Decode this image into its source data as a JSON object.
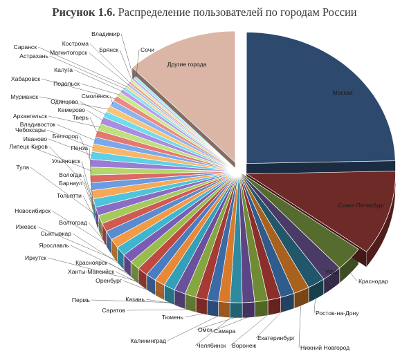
{
  "title": {
    "prefix": "Рисунок 1.6.",
    "text": "Распределение пользователей по городам России"
  },
  "chart_data": {
    "type": "pie",
    "style": "3d-exploded",
    "title": "Распределение пользователей по городам России",
    "slices": [
      {
        "label": "Москва",
        "value": 26.0,
        "color": "#2d4a6e"
      },
      {
        "label": "Санкт-Петербург",
        "value": 11.0,
        "color": "#6e2a27"
      },
      {
        "label": "Краснодар",
        "value": 3.2,
        "color": "#566b2e"
      },
      {
        "label": "Уфа",
        "value": 2.3,
        "color": "#4a3a66"
      },
      {
        "label": "Ростов-на-Дону",
        "value": 2.0,
        "color": "#22566a"
      },
      {
        "label": "Нижний Новгород",
        "value": 1.8,
        "color": "#a8621e"
      },
      {
        "label": "Екатеринбург",
        "value": 1.6,
        "color": "#2f5c8c"
      },
      {
        "label": "Воронеж",
        "value": 1.5,
        "color": "#8c2f2b"
      },
      {
        "label": "Самара",
        "value": 1.5,
        "color": "#6f8c35"
      },
      {
        "label": "Омск",
        "value": 1.4,
        "color": "#5c4585"
      },
      {
        "label": "Челябинск",
        "value": 1.4,
        "color": "#2d8aa0"
      },
      {
        "label": "Калининград",
        "value": 1.3,
        "color": "#d97a2b"
      },
      {
        "label": "Тюмень",
        "value": 1.3,
        "color": "#3c6aa6"
      },
      {
        "label": "Саратов",
        "value": 1.3,
        "color": "#a63a34"
      },
      {
        "label": "Казань",
        "value": 1.3,
        "color": "#85a641"
      },
      {
        "label": "Пермь",
        "value": 1.3,
        "color": "#6b509c"
      },
      {
        "label": "Оренбург",
        "value": 1.3,
        "color": "#34a0b8"
      },
      {
        "label": "Ханты-Мансийск",
        "value": 1.2,
        "color": "#e8893a"
      },
      {
        "label": "Красноярск",
        "value": 1.2,
        "color": "#4a7cc0"
      },
      {
        "label": "Иркутск",
        "value": 1.2,
        "color": "#c04840"
      },
      {
        "label": "Ярославль",
        "value": 1.2,
        "color": "#98bd4c"
      },
      {
        "label": "Сыктывкар",
        "value": 1.2,
        "color": "#7a5cb4"
      },
      {
        "label": "Ижевск",
        "value": 1.2,
        "color": "#3eb6cf"
      },
      {
        "label": "Волгоград",
        "value": 1.2,
        "color": "#f39a45"
      },
      {
        "label": "Новосибирск",
        "value": 1.2,
        "color": "#5a8bd0"
      },
      {
        "label": "Тольятти",
        "value": 1.1,
        "color": "#cf5a52"
      },
      {
        "label": "Барнаул",
        "value": 1.1,
        "color": "#a6c95c"
      },
      {
        "label": "Вологда",
        "value": 1.1,
        "color": "#8a6cc4"
      },
      {
        "label": "Тула",
        "value": 1.1,
        "color": "#4ec4dc"
      },
      {
        "label": "Ульяновск",
        "value": 1.1,
        "color": "#f5a957"
      },
      {
        "label": "Пенза",
        "value": 1.0,
        "color": "#6b9be0"
      },
      {
        "label": "Киров",
        "value": 1.0,
        "color": "#da6a62"
      },
      {
        "label": "Липецк",
        "value": 1.0,
        "color": "#b4d66c"
      },
      {
        "label": "Белгород",
        "value": 1.0,
        "color": "#9a7cd4"
      },
      {
        "label": "Иваново",
        "value": 1.0,
        "color": "#5ed0e6"
      },
      {
        "label": "Чебоксары",
        "value": 1.0,
        "color": "#f8b768"
      },
      {
        "label": "Владивосток",
        "value": 0.9,
        "color": "#7aa8ea"
      },
      {
        "label": "Тверь",
        "value": 0.9,
        "color": "#e27a72"
      },
      {
        "label": "Архангельск",
        "value": 0.9,
        "color": "#c0e07c"
      },
      {
        "label": "Кемерово",
        "value": 0.9,
        "color": "#aa8ce0"
      },
      {
        "label": "Одинцово",
        "value": 0.8,
        "color": "#70dcee"
      },
      {
        "label": "Мурманск",
        "value": 0.8,
        "color": "#fac478"
      },
      {
        "label": "Смоленск",
        "value": 0.8,
        "color": "#8ab4f0"
      },
      {
        "label": "Хабаровск",
        "value": 0.7,
        "color": "#ea8a82"
      },
      {
        "label": "Подольск",
        "value": 0.6,
        "color": "#cce88c"
      },
      {
        "label": "Калуга",
        "value": 0.5,
        "color": "#ba9cea"
      },
      {
        "label": "Астрахань",
        "value": 0.4,
        "color": "#82e4f4"
      },
      {
        "label": "Саранск",
        "value": 0.3,
        "color": "#fbcf8a"
      },
      {
        "label": "Магнитогорск",
        "value": 0.3,
        "color": "#a0c4f4"
      },
      {
        "label": "Кострома",
        "value": 0.3,
        "color": "#f0a098"
      },
      {
        "label": "Брянск",
        "value": 0.3,
        "color": "#d8ee9c"
      },
      {
        "label": "Владимир",
        "value": 0.3,
        "color": "#c8b0f0"
      },
      {
        "label": "Сочи",
        "value": 0.3,
        "color": "#96eaf8"
      },
      {
        "label": "Другие города",
        "value": 12.8,
        "color": "#dbb6a6"
      }
    ]
  }
}
